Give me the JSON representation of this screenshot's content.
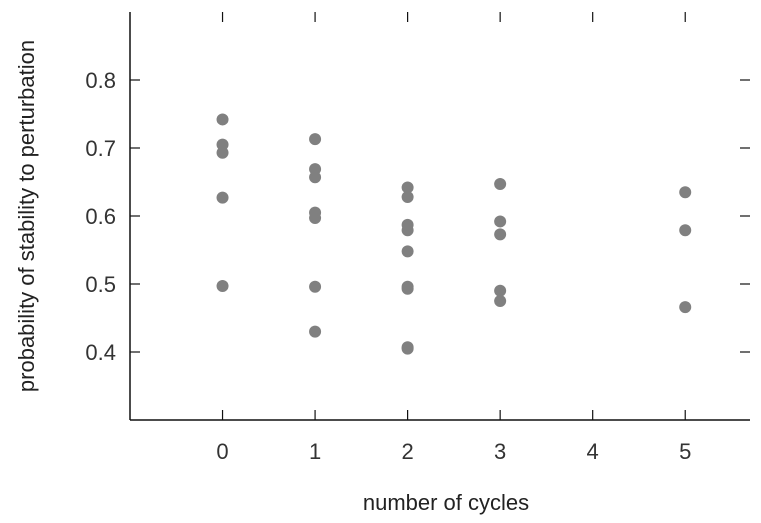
{
  "chart_data": {
    "type": "scatter",
    "title": "",
    "xlabel": "number of cycles",
    "ylabel": "probability of stability to perturbation",
    "xlim": [
      -1,
      5.7
    ],
    "ylim": [
      0.3,
      0.9
    ],
    "x_ticks": [
      "0",
      "1",
      "2",
      "3",
      "4",
      "5"
    ],
    "y_ticks": [
      "0.4",
      "0.5",
      "0.6",
      "0.7",
      "0.8"
    ],
    "grid": false,
    "legend": "none",
    "marker_color": "#808080",
    "points": [
      {
        "x": 0,
        "y": 0.742
      },
      {
        "x": 0,
        "y": 0.705
      },
      {
        "x": 0,
        "y": 0.693
      },
      {
        "x": 0,
        "y": 0.627
      },
      {
        "x": 0,
        "y": 0.497
      },
      {
        "x": 1,
        "y": 0.713
      },
      {
        "x": 1,
        "y": 0.669
      },
      {
        "x": 1,
        "y": 0.657
      },
      {
        "x": 1,
        "y": 0.605
      },
      {
        "x": 1,
        "y": 0.597
      },
      {
        "x": 1,
        "y": 0.496
      },
      {
        "x": 1,
        "y": 0.43
      },
      {
        "x": 2,
        "y": 0.642
      },
      {
        "x": 2,
        "y": 0.628
      },
      {
        "x": 2,
        "y": 0.587
      },
      {
        "x": 2,
        "y": 0.579
      },
      {
        "x": 2,
        "y": 0.548
      },
      {
        "x": 2,
        "y": 0.496
      },
      {
        "x": 2,
        "y": 0.493
      },
      {
        "x": 2,
        "y": 0.407
      },
      {
        "x": 2,
        "y": 0.405
      },
      {
        "x": 3,
        "y": 0.647
      },
      {
        "x": 3,
        "y": 0.592
      },
      {
        "x": 3,
        "y": 0.573
      },
      {
        "x": 3,
        "y": 0.49
      },
      {
        "x": 3,
        "y": 0.475
      },
      {
        "x": 5,
        "y": 0.635
      },
      {
        "x": 5,
        "y": 0.579
      },
      {
        "x": 5,
        "y": 0.466
      }
    ]
  }
}
